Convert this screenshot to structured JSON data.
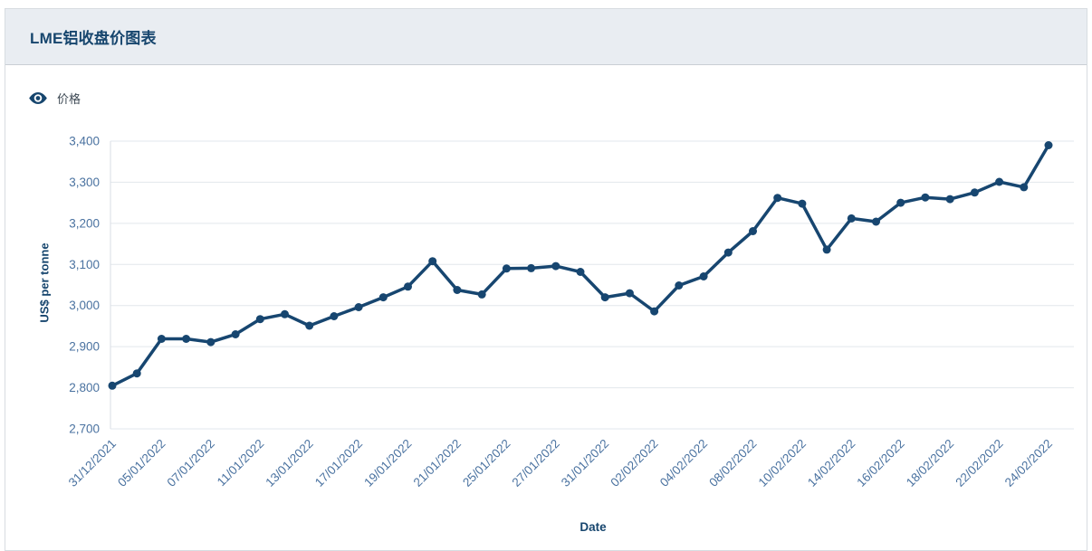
{
  "header": {
    "title": "LME铝收盘价图表"
  },
  "legend": {
    "label": "价格",
    "icon": "eye-icon"
  },
  "chart_data": {
    "type": "line",
    "title": "LME铝收盘价图表",
    "series": [
      {
        "name": "价格",
        "values": [
          2805,
          2835,
          2919,
          2919,
          2911,
          2930,
          2967,
          2979,
          2951,
          2974,
          2996,
          3020,
          3046,
          3108,
          3038,
          3027,
          3090,
          3091,
          3096,
          3082,
          3020,
          3030,
          2986,
          3049,
          3071,
          3129,
          3181,
          3262,
          3248,
          3136,
          3212,
          3204,
          3250,
          3263,
          3259,
          3275,
          3301,
          3288,
          3390
        ]
      }
    ],
    "x_tick_labels": [
      "31/12/2021",
      "05/01/2022",
      "07/01/2022",
      "11/01/2022",
      "13/01/2022",
      "17/01/2022",
      "19/01/2022",
      "21/01/2022",
      "25/01/2022",
      "27/01/2022",
      "31/01/2022",
      "02/02/2022",
      "04/02/2022",
      "08/02/2022",
      "10/02/2022",
      "14/02/2022",
      "16/02/2022",
      "18/02/2022",
      "22/02/2022",
      "24/02/2022"
    ],
    "tick_every": 2,
    "xlabel": "Date",
    "ylabel": "US$ per tonne",
    "ylim": [
      2700,
      3400
    ],
    "y_tick_step": 100,
    "grid": "horizontal",
    "legend_position": "top-left",
    "colors": {
      "line": "#174670",
      "marker": "#174670",
      "axis_text": "#4a72a0",
      "axis_title": "#17466e",
      "grid": "#e2e7ec",
      "axis_line": "#d9dee4",
      "header_bg": "#e9edf2",
      "title_text": "#17466e"
    }
  }
}
